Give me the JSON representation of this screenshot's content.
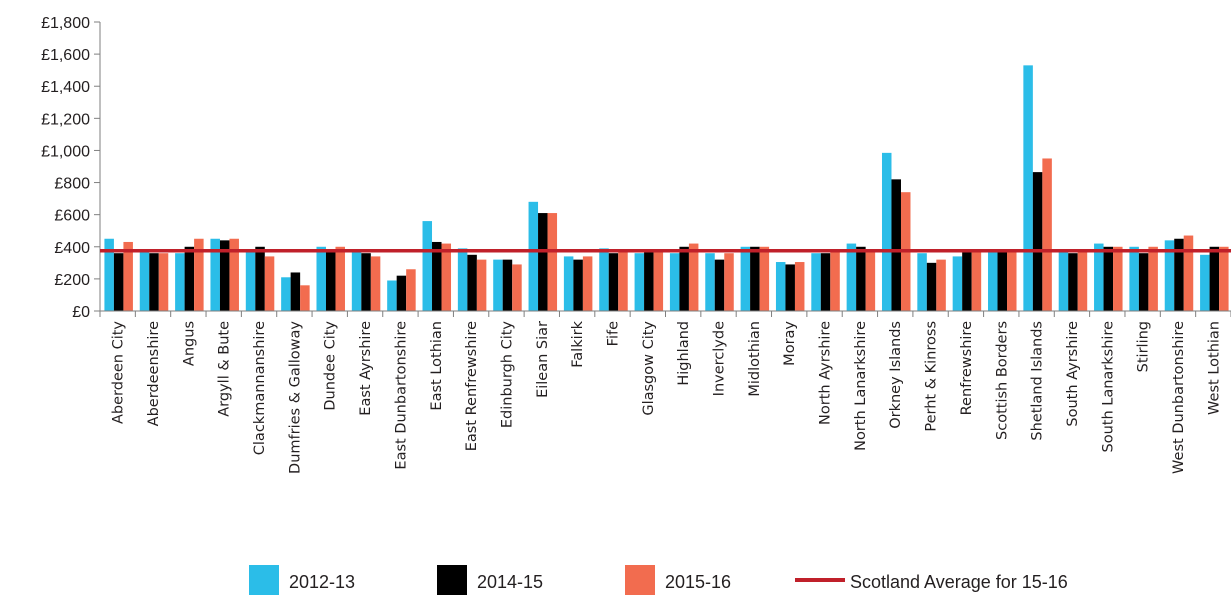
{
  "chart_data": {
    "type": "bar",
    "title": "",
    "xlabel": "",
    "ylabel": "",
    "ylim": [
      0,
      1800
    ],
    "y_ticks": [
      0,
      200,
      400,
      600,
      800,
      1000,
      1200,
      1400,
      1600,
      1800
    ],
    "y_tick_labels": [
      "£0",
      "£200",
      "£400",
      "£600",
      "£800",
      "£1,000",
      "£1,200",
      "£1,400",
      "£1,600",
      "£1,800"
    ],
    "grid": false,
    "legend_position": "bottom",
    "categories": [
      "Aberdeen City",
      "Aberdeenshire",
      "Angus",
      "Argyll & Bute",
      "Clackmannanshire",
      "Dumfries & Galloway",
      "Dundee City",
      "East Ayrshire",
      "East Dunbartonshire",
      "East Lothian",
      "East Renfrewshire",
      "Edinburgh City",
      "Eilean Siar",
      "Falkirk",
      "Fife",
      "Glasgow City",
      "Highland",
      "Inverclyde",
      "Midlothian",
      "Moray",
      "North Ayrshire",
      "North Lanarkshire",
      "Orkney Islands",
      "Perht & Kinross",
      "Renfrewshire",
      "Scottish Borders",
      "Shetland Islands",
      "South Ayrshire",
      "South Lanarkshire",
      "Stirling",
      "West Dunbartonshire",
      "West Lothian"
    ],
    "series": [
      {
        "name": "2012-13",
        "color": "#2bbde8",
        "values": [
          450,
          380,
          360,
          450,
          380,
          210,
          400,
          380,
          190,
          560,
          390,
          320,
          680,
          340,
          390,
          360,
          360,
          360,
          400,
          305,
          360,
          420,
          985,
          360,
          340,
          370,
          1530,
          380,
          420,
          400,
          440,
          350
        ]
      },
      {
        "name": "2014-15",
        "color": "#000000",
        "values": [
          360,
          360,
          400,
          440,
          400,
          240,
          370,
          360,
          220,
          430,
          350,
          320,
          610,
          320,
          360,
          380,
          400,
          320,
          400,
          290,
          360,
          400,
          820,
          300,
          380,
          380,
          865,
          360,
          400,
          360,
          450,
          400
        ]
      },
      {
        "name": "2015-16",
        "color": "#f26c4f",
        "values": [
          430,
          360,
          450,
          450,
          340,
          160,
          400,
          340,
          260,
          420,
          320,
          290,
          610,
          340,
          380,
          380,
          420,
          360,
          400,
          305,
          380,
          385,
          740,
          320,
          380,
          385,
          950,
          380,
          400,
          400,
          470,
          400
        ]
      }
    ],
    "reference_line": {
      "name": "Scotland Average for 15-16",
      "value": 375,
      "color": "#c0202a"
    }
  }
}
